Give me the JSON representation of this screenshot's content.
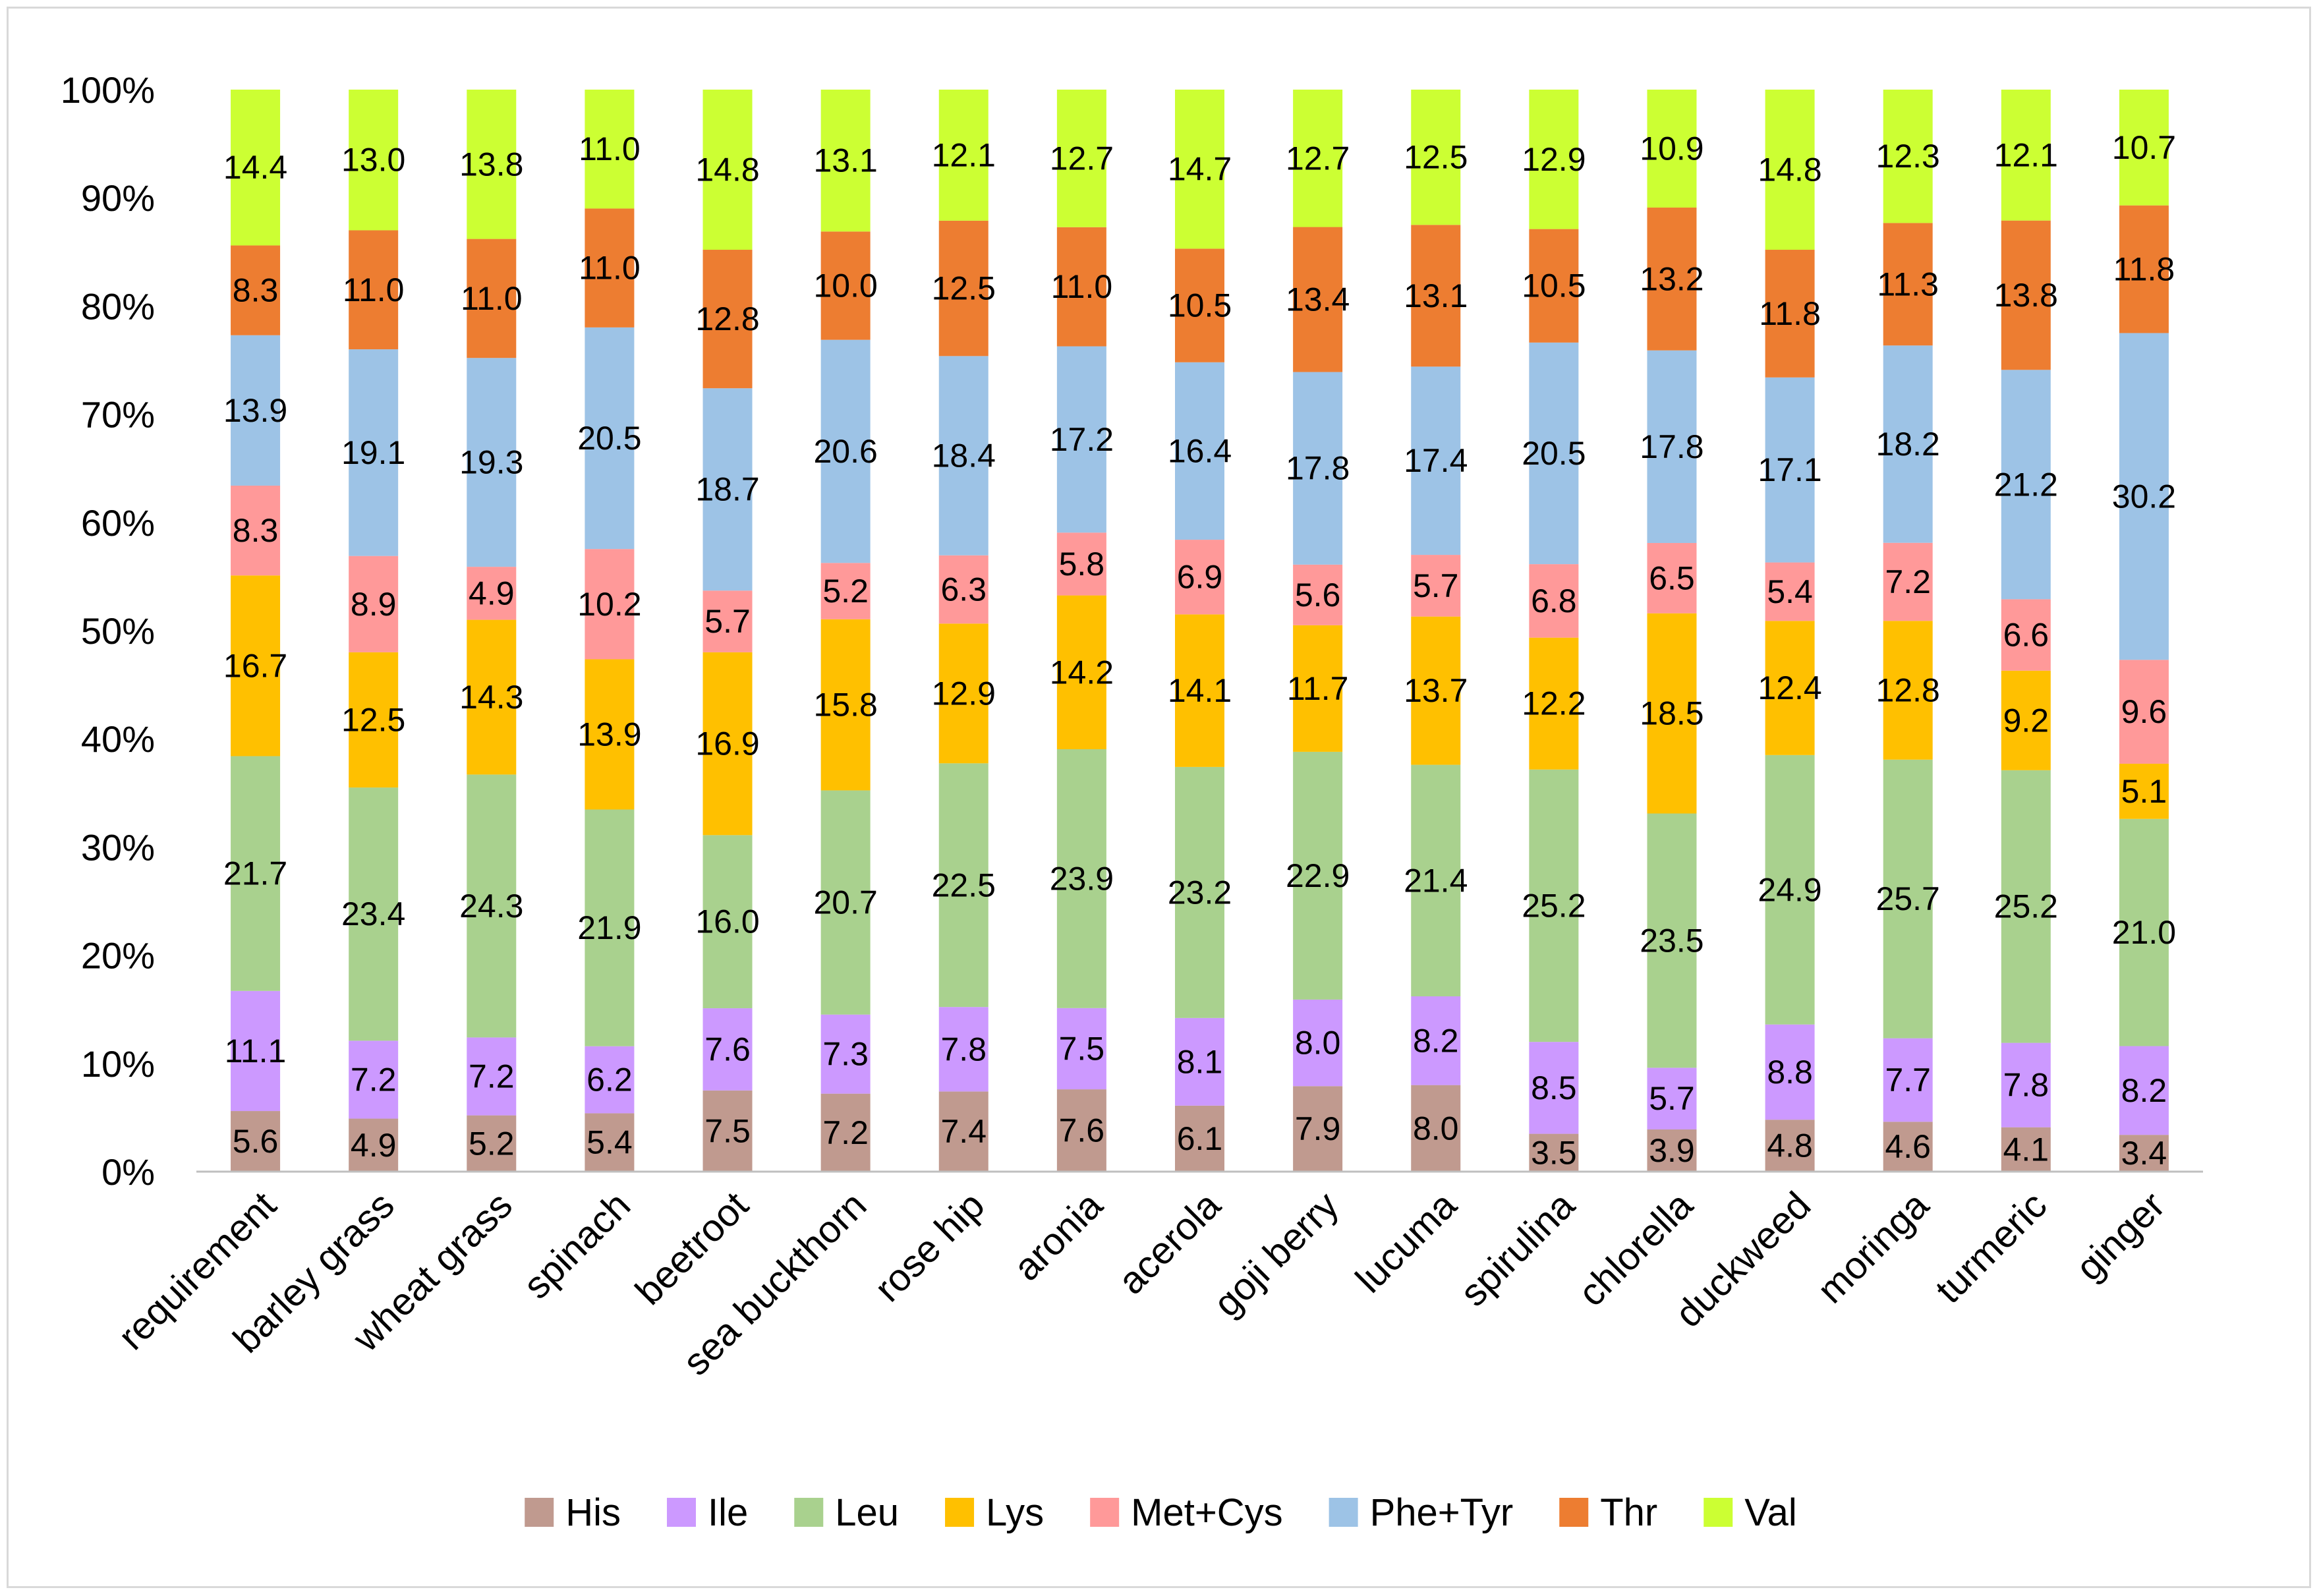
{
  "chart_data": {
    "type": "bar",
    "stacked": "percent",
    "categories": [
      "requirement",
      "barley grass",
      "wheat grass",
      "spinach",
      "beetroot",
      "sea buckthorn",
      "rose hip",
      "aronia",
      "acerola",
      "goji berry",
      "lucuma",
      "spirulina",
      "chlorella",
      "duckweed",
      "moringa",
      "turmeric",
      "ginger"
    ],
    "series": [
      {
        "name": "His",
        "color": "#c09a8f",
        "values": [
          5.6,
          4.9,
          5.2,
          5.4,
          7.5,
          7.2,
          7.4,
          7.6,
          6.1,
          7.9,
          8.0,
          3.5,
          3.9,
          4.8,
          4.6,
          4.1,
          3.4
        ]
      },
      {
        "name": "Ile",
        "color": "#cc99ff",
        "values": [
          11.1,
          7.2,
          7.2,
          6.2,
          7.6,
          7.3,
          7.8,
          7.5,
          8.1,
          8.0,
          8.2,
          8.5,
          5.7,
          8.8,
          7.7,
          7.8,
          8.2
        ]
      },
      {
        "name": "Leu",
        "color": "#a9d18e",
        "values": [
          21.7,
          23.4,
          24.3,
          21.9,
          16.0,
          20.7,
          22.5,
          23.9,
          23.2,
          22.9,
          21.4,
          25.2,
          23.5,
          24.9,
          25.7,
          25.2,
          21.0
        ]
      },
      {
        "name": "Lys",
        "color": "#ffc000",
        "values": [
          16.7,
          12.5,
          14.3,
          13.9,
          16.9,
          15.8,
          12.9,
          14.2,
          14.1,
          11.7,
          13.7,
          12.2,
          18.5,
          12.4,
          12.8,
          9.2,
          5.1
        ]
      },
      {
        "name": "Met+Cys",
        "color": "#ff9999",
        "values": [
          8.3,
          8.9,
          4.9,
          10.2,
          5.7,
          5.2,
          6.3,
          5.8,
          6.9,
          5.6,
          5.7,
          6.8,
          6.5,
          5.4,
          7.2,
          6.6,
          9.6
        ]
      },
      {
        "name": "Phe+Tyr",
        "color": "#9dc3e6",
        "values": [
          13.9,
          19.1,
          19.3,
          20.5,
          18.7,
          20.6,
          18.4,
          17.2,
          16.4,
          17.8,
          17.4,
          20.5,
          17.8,
          17.1,
          18.2,
          21.2,
          30.2
        ]
      },
      {
        "name": "Thr",
        "color": "#ed7d31",
        "values": [
          8.3,
          11.0,
          11.0,
          11.0,
          12.8,
          10.0,
          12.5,
          11.0,
          10.5,
          13.4,
          13.1,
          10.5,
          13.2,
          11.8,
          11.3,
          13.8,
          11.8
        ]
      },
      {
        "name": "Val",
        "color": "#ccff33",
        "values": [
          14.4,
          13.0,
          13.8,
          11.0,
          14.8,
          13.1,
          12.1,
          12.7,
          14.7,
          12.7,
          12.5,
          12.9,
          10.9,
          14.8,
          12.3,
          12.1,
          10.7
        ]
      }
    ],
    "y_ticks": [
      "0%",
      "10%",
      "20%",
      "30%",
      "40%",
      "50%",
      "60%",
      "70%",
      "80%",
      "90%",
      "100%"
    ],
    "ylim": [
      0,
      100
    ],
    "grid": false,
    "legend_position": "bottom"
  }
}
